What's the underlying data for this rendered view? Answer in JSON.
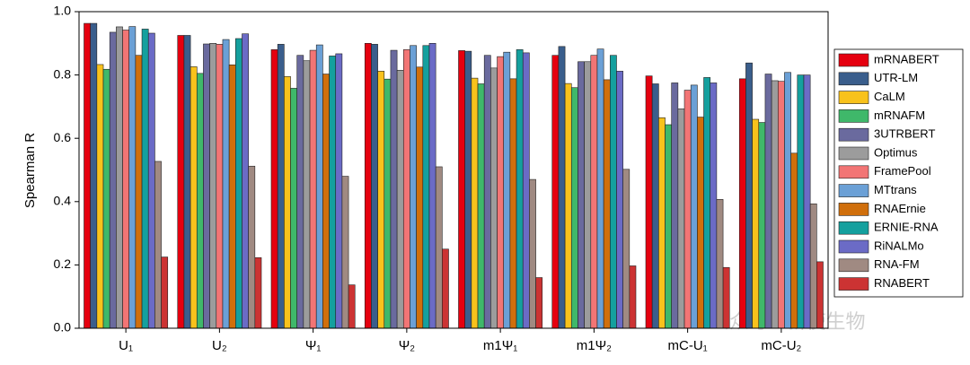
{
  "chart_data": {
    "type": "bar",
    "y_label": "Spearman R",
    "categories": [
      "U₁",
      "U₂",
      "Ψ₁",
      "Ψ₂",
      "m1Ψ₁",
      "m1Ψ₂",
      "mC-U₁",
      "mC-U₂"
    ],
    "ylim": [
      0,
      1
    ],
    "yticks": [
      {
        "value": 0,
        "label": "0.0"
      },
      0.2,
      0.4,
      0.6,
      0.8,
      {
        "value": 1,
        "label": "1.0"
      }
    ],
    "series": [
      {
        "name": "mRNABERT",
        "color": "#e5000f",
        "values": [
          0.963,
          0.925,
          0.88,
          0.9,
          0.877,
          0.862,
          0.797,
          0.788
        ]
      },
      {
        "name": "UTR-LM",
        "color": "#3a5e8c",
        "values": [
          0.963,
          0.925,
          0.897,
          0.897,
          0.875,
          0.89,
          0.772,
          0.838
        ]
      },
      {
        "name": "CaLM",
        "color": "#f8c21c",
        "values": [
          0.833,
          0.826,
          0.795,
          0.812,
          0.79,
          0.773,
          0.665,
          0.66
        ]
      },
      {
        "name": "mRNAFM",
        "color": "#3fb86a",
        "values": [
          0.818,
          0.805,
          0.758,
          0.787,
          0.772,
          0.76,
          0.643,
          0.65
        ]
      },
      {
        "name": "3UTRBERT",
        "color": "#6a6a9e",
        "values": [
          0.935,
          0.898,
          0.862,
          0.878,
          0.862,
          0.842,
          0.775,
          0.803
        ]
      },
      {
        "name": "Optimus",
        "color": "#9c9c9c",
        "values": [
          0.952,
          0.9,
          0.845,
          0.815,
          0.822,
          0.842,
          0.693,
          0.782
        ]
      },
      {
        "name": "FramePool",
        "color": "#f27575",
        "values": [
          0.942,
          0.897,
          0.878,
          0.88,
          0.858,
          0.862,
          0.752,
          0.78
        ]
      },
      {
        "name": "MTtrans",
        "color": "#6ba0d6",
        "values": [
          0.953,
          0.912,
          0.895,
          0.893,
          0.872,
          0.882,
          0.768,
          0.808
        ]
      },
      {
        "name": "RNAErnie",
        "color": "#d06f0c",
        "values": [
          0.862,
          0.832,
          0.803,
          0.825,
          0.788,
          0.785,
          0.667,
          0.553
        ]
      },
      {
        "name": "ERNIE-RNA",
        "color": "#14a09e",
        "values": [
          0.945,
          0.915,
          0.86,
          0.893,
          0.88,
          0.862,
          0.792,
          0.8
        ]
      },
      {
        "name": "RiNALMo",
        "color": "#6b6bc6",
        "values": [
          0.932,
          0.93,
          0.867,
          0.9,
          0.87,
          0.812,
          0.775,
          0.8
        ]
      },
      {
        "name": "RNA-FM",
        "color": "#a08a82",
        "values": [
          0.527,
          0.512,
          0.48,
          0.51,
          0.47,
          0.502,
          0.407,
          0.393
        ]
      },
      {
        "name": "RNABERT",
        "color": "#cc3333",
        "values": [
          0.225,
          0.223,
          0.137,
          0.25,
          0.16,
          0.197,
          0.192,
          0.21
        ]
      }
    ]
  },
  "watermark": "公众号 · 新使生物"
}
